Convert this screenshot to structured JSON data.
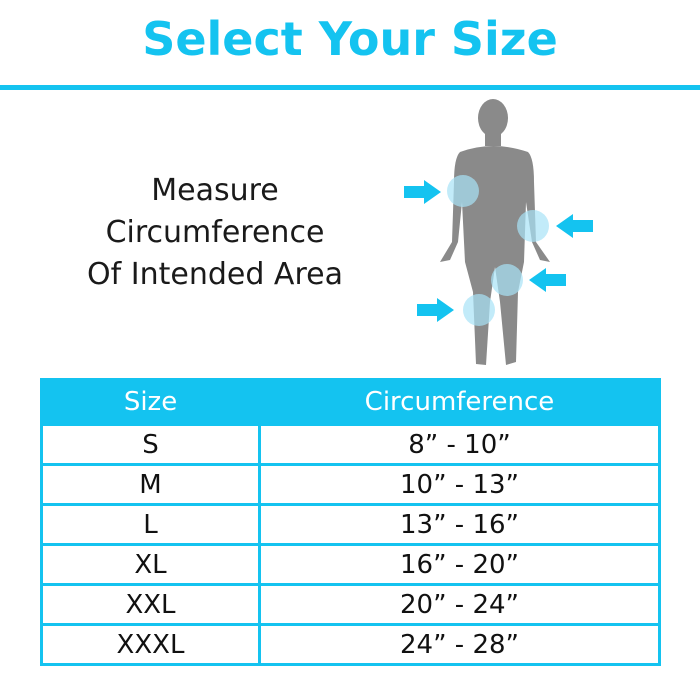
{
  "title": "Select Your Size",
  "instruction": [
    "Measure",
    "Circumference",
    "Of Intended Area"
  ],
  "colors": {
    "accent": "#14c3f0",
    "figure": "#8a8a8a",
    "highlight": "#a8e2f7"
  },
  "figure_icon": "human-body-silhouette-with-measurement-arrows",
  "table": {
    "headers": [
      "Size",
      "Circumference"
    ],
    "rows": [
      [
        "S",
        "8” - 10”"
      ],
      [
        "M",
        "10” - 13”"
      ],
      [
        "L",
        "13” - 16”"
      ],
      [
        "XL",
        "16” - 20”"
      ],
      [
        "XXL",
        "20” - 24”"
      ],
      [
        "XXXL",
        "24” - 28”"
      ]
    ]
  }
}
